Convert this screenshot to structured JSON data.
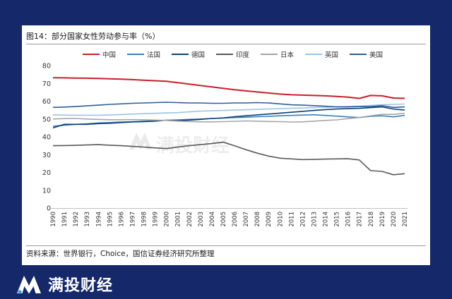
{
  "title": "图14：部分国家女性劳动参与率（%）",
  "source": "资料来源：世界银行，Choice，国信证券经济研究所整理",
  "watermark": "满投财经",
  "brand": "满投财经",
  "colors": {
    "background": "#14286a",
    "中国": "#c8202a",
    "法国": "#3a7fc1",
    "德国": "#0d3f7a",
    "印度": "#595959",
    "日本": "#a6a6a6",
    "英国": "#9dc3e6",
    "美国": "#2e5f96"
  },
  "chart_data": {
    "type": "line",
    "title": "图14：部分国家女性劳动参与率（%）",
    "x": [
      "1990",
      "1991",
      "1992",
      "1993",
      "1994",
      "1995",
      "1996",
      "1997",
      "1998",
      "1999",
      "2000",
      "2001",
      "2002",
      "2003",
      "2004",
      "2005",
      "2006",
      "2007",
      "2008",
      "2009",
      "2010",
      "2011",
      "2012",
      "2013",
      "2014",
      "2015",
      "2016",
      "2017",
      "2018",
      "2019",
      "2020",
      "2021"
    ],
    "ylim": [
      0,
      80
    ],
    "yticks": [
      0,
      10,
      20,
      30,
      40,
      50,
      60,
      70,
      80
    ],
    "grid": false,
    "legend": "top",
    "series": [
      {
        "name": "中国",
        "values": [
          73.2,
          73.1,
          73.0,
          72.9,
          72.8,
          72.6,
          72.4,
          72.1,
          71.8,
          71.5,
          71.2,
          70.4,
          69.6,
          68.8,
          68.0,
          67.2,
          66.4,
          65.8,
          65.2,
          64.6,
          64.0,
          63.6,
          63.4,
          63.2,
          63.0,
          62.7,
          62.3,
          61.6,
          63.2,
          63.0,
          61.8,
          61.6
        ]
      },
      {
        "name": "法国",
        "values": [
          46.0,
          46.5,
          47.0,
          47.3,
          47.8,
          48.0,
          48.3,
          48.5,
          48.8,
          49.0,
          49.3,
          49.5,
          49.8,
          50.0,
          50.3,
          50.5,
          50.8,
          51.0,
          51.3,
          51.5,
          51.8,
          52.0,
          52.2,
          52.4,
          52.0,
          51.6,
          51.2,
          50.8,
          51.5,
          51.8,
          51.2,
          52.0
        ]
      },
      {
        "name": "德国",
        "values": [
          45.0,
          47.0,
          47.0,
          47.0,
          47.4,
          47.6,
          48.0,
          48.3,
          48.5,
          48.8,
          49.3,
          49.0,
          49.4,
          49.8,
          50.3,
          50.6,
          51.3,
          51.8,
          52.3,
          52.8,
          53.3,
          53.8,
          54.3,
          54.8,
          55.3,
          55.6,
          55.8,
          56.0,
          56.4,
          56.8,
          55.6,
          55.0
        ]
      },
      {
        "name": "印度",
        "values": [
          35.0,
          35.1,
          35.2,
          35.4,
          35.6,
          35.3,
          35.0,
          34.6,
          34.2,
          33.8,
          33.4,
          34.2,
          35.0,
          35.6,
          36.2,
          37.0,
          35.0,
          32.8,
          30.8,
          29.2,
          28.0,
          27.6,
          27.2,
          27.3,
          27.5,
          27.6,
          27.7,
          27.0,
          21.0,
          20.6,
          18.7,
          19.3
        ]
      },
      {
        "name": "日本",
        "values": [
          50.0,
          50.2,
          50.3,
          50.0,
          49.8,
          49.6,
          49.6,
          49.7,
          49.6,
          49.4,
          49.2,
          48.8,
          48.6,
          48.4,
          48.4,
          48.5,
          48.7,
          48.9,
          48.8,
          48.6,
          48.5,
          48.3,
          48.4,
          48.8,
          49.2,
          49.5,
          50.2,
          50.8,
          51.8,
          52.6,
          52.6,
          53.2
        ]
      },
      {
        "name": "英国",
        "values": [
          52.3,
          52.2,
          52.1,
          52.1,
          52.1,
          52.3,
          52.5,
          52.8,
          53.0,
          53.2,
          53.4,
          53.6,
          54.0,
          54.4,
          54.6,
          54.8,
          55.0,
          55.2,
          55.4,
          55.6,
          55.8,
          56.0,
          56.2,
          56.4,
          56.6,
          56.8,
          57.0,
          57.2,
          57.6,
          58.0,
          58.2,
          58.4
        ]
      },
      {
        "name": "美国",
        "values": [
          56.5,
          56.7,
          57.0,
          57.4,
          57.8,
          58.2,
          58.5,
          58.8,
          59.0,
          59.2,
          59.4,
          59.2,
          59.0,
          59.0,
          58.8,
          58.8,
          59.0,
          59.0,
          59.2,
          59.0,
          58.5,
          58.0,
          57.8,
          57.5,
          57.2,
          56.8,
          56.8,
          57.0,
          57.0,
          57.5,
          56.5,
          56.8
        ]
      }
    ]
  }
}
